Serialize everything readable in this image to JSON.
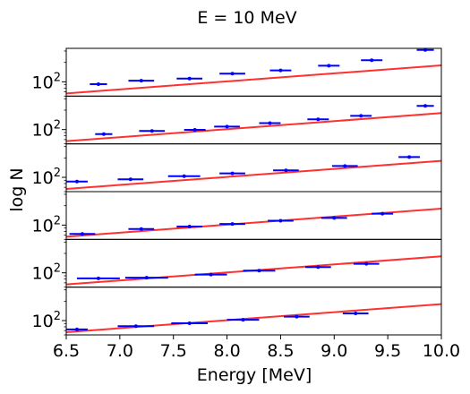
{
  "figure": {
    "title": "E = 10 MeV",
    "xlabel": "Energy [MeV]",
    "ylabel": "log N"
  },
  "colors": {
    "fit_line": "#ff3030",
    "points": "#0000ff",
    "axes": "#000000"
  },
  "chart_data": {
    "type": "scatter",
    "layout": "6 vertically stacked panels sharing the x axis",
    "x_axis": {
      "label": "Energy [MeV]",
      "range": [
        6.5,
        10.0
      ],
      "ticks": [
        6.5,
        7.0,
        7.5,
        8.0,
        8.5,
        9.0,
        9.5,
        10.0
      ],
      "tick_labels": [
        "6.5",
        "7.0",
        "7.5",
        "8.0",
        "8.5",
        "9.0",
        "9.5",
        "10.0"
      ]
    },
    "y_axis": {
      "label": "log N",
      "scale": "log",
      "tick_label": "10^2",
      "tick_value": 100
    },
    "panels": [
      {
        "ylim": [
          60,
          330
        ],
        "fit": {
          "y_at_6_5": 66,
          "y_at_10_0": 180
        },
        "points": [
          {
            "x": 6.8,
            "y": 92,
            "xerr": 0.08
          },
          {
            "x": 7.2,
            "y": 104,
            "xerr": 0.12
          },
          {
            "x": 7.65,
            "y": 112,
            "xerr": 0.12
          },
          {
            "x": 8.05,
            "y": 134,
            "xerr": 0.12
          },
          {
            "x": 8.5,
            "y": 150,
            "xerr": 0.1
          },
          {
            "x": 8.95,
            "y": 178,
            "xerr": 0.1
          },
          {
            "x": 9.35,
            "y": 216,
            "xerr": 0.1
          },
          {
            "x": 9.85,
            "y": 312,
            "xerr": 0.08
          }
        ]
      },
      {
        "ylim": [
          60,
          330
        ],
        "fit": {
          "y_at_6_5": 66,
          "y_at_10_0": 180
        },
        "points": [
          {
            "x": 6.85,
            "y": 85,
            "xerr": 0.08
          },
          {
            "x": 7.3,
            "y": 95,
            "xerr": 0.12
          },
          {
            "x": 7.7,
            "y": 99,
            "xerr": 0.1
          },
          {
            "x": 8.0,
            "y": 111,
            "xerr": 0.12
          },
          {
            "x": 8.4,
            "y": 126,
            "xerr": 0.1
          },
          {
            "x": 8.85,
            "y": 144,
            "xerr": 0.1
          },
          {
            "x": 9.25,
            "y": 163,
            "xerr": 0.1
          },
          {
            "x": 9.85,
            "y": 233,
            "xerr": 0.08
          }
        ]
      },
      {
        "ylim": [
          60,
          330
        ],
        "fit": {
          "y_at_6_5": 66,
          "y_at_10_0": 180
        },
        "points": [
          {
            "x": 6.6,
            "y": 86,
            "xerr": 0.1
          },
          {
            "x": 7.1,
            "y": 93,
            "xerr": 0.12
          },
          {
            "x": 7.6,
            "y": 104,
            "xerr": 0.15
          },
          {
            "x": 8.05,
            "y": 115,
            "xerr": 0.12
          },
          {
            "x": 8.55,
            "y": 128,
            "xerr": 0.12
          },
          {
            "x": 9.1,
            "y": 150,
            "xerr": 0.12
          },
          {
            "x": 9.7,
            "y": 206,
            "xerr": 0.1
          }
        ]
      },
      {
        "ylim": [
          60,
          330
        ],
        "fit": {
          "y_at_6_5": 66,
          "y_at_10_0": 180
        },
        "points": [
          {
            "x": 6.65,
            "y": 73,
            "xerr": 0.12
          },
          {
            "x": 7.2,
            "y": 87,
            "xerr": 0.12
          },
          {
            "x": 7.65,
            "y": 95,
            "xerr": 0.12
          },
          {
            "x": 8.05,
            "y": 104,
            "xerr": 0.12
          },
          {
            "x": 8.5,
            "y": 117,
            "xerr": 0.12
          },
          {
            "x": 9.0,
            "y": 129,
            "xerr": 0.12
          },
          {
            "x": 9.45,
            "y": 150,
            "xerr": 0.1
          }
        ]
      },
      {
        "ylim": [
          60,
          330
        ],
        "fit": {
          "y_at_6_5": 66,
          "y_at_10_0": 180
        },
        "points": [
          {
            "x": 6.8,
            "y": 82,
            "xerr": 0.2
          },
          {
            "x": 7.25,
            "y": 84,
            "xerr": 0.2
          },
          {
            "x": 7.85,
            "y": 94,
            "xerr": 0.15
          },
          {
            "x": 8.3,
            "y": 108,
            "xerr": 0.15
          },
          {
            "x": 8.85,
            "y": 123,
            "xerr": 0.12
          },
          {
            "x": 9.3,
            "y": 138,
            "xerr": 0.12
          }
        ]
      },
      {
        "ylim": [
          60,
          330
        ],
        "fit": {
          "y_at_6_5": 66,
          "y_at_10_0": 180
        },
        "points": [
          {
            "x": 6.6,
            "y": 73,
            "xerr": 0.1
          },
          {
            "x": 7.15,
            "y": 82,
            "xerr": 0.17
          },
          {
            "x": 7.65,
            "y": 91,
            "xerr": 0.17
          },
          {
            "x": 8.15,
            "y": 103,
            "xerr": 0.15
          },
          {
            "x": 8.65,
            "y": 115,
            "xerr": 0.12
          },
          {
            "x": 9.2,
            "y": 129,
            "xerr": 0.12
          }
        ]
      }
    ]
  }
}
